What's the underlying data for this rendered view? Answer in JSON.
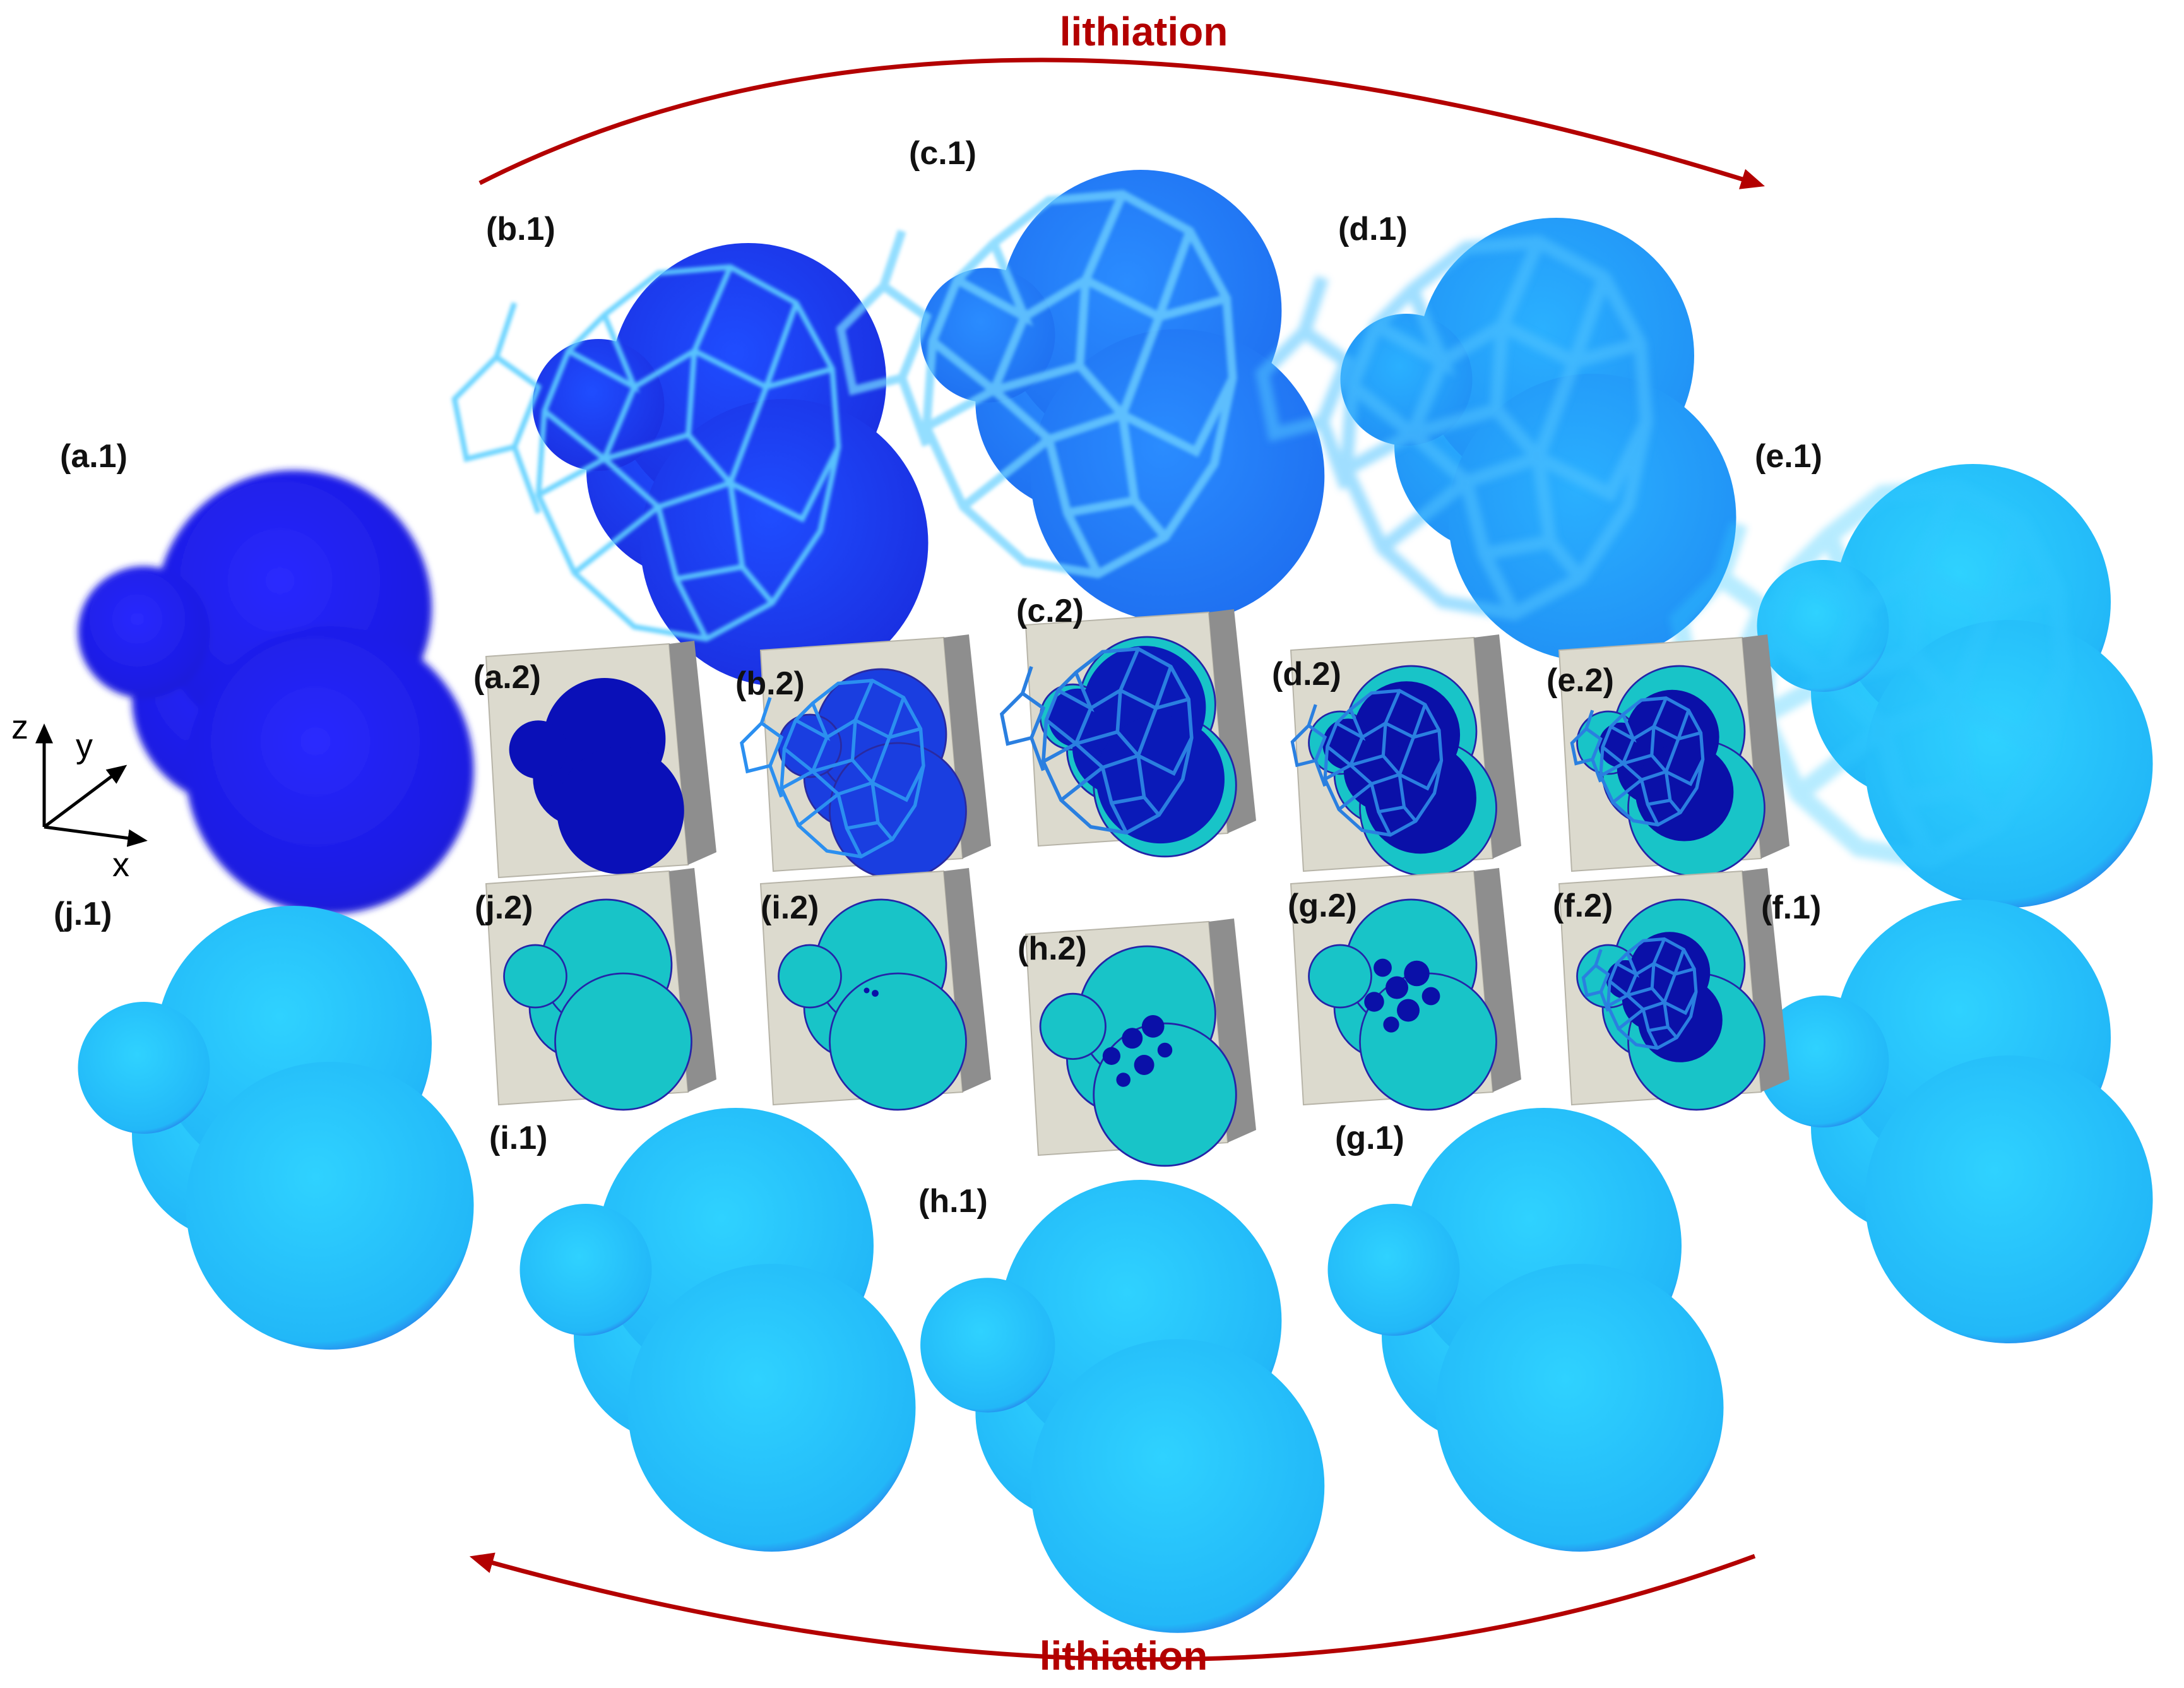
{
  "top_arrow_label": "lithiation",
  "bottom_arrow_label": "lithiation",
  "arrow_color": "#b30000",
  "colors": {
    "deep_blue": "#1a1ae6",
    "medium_blue": "#1e6ff5",
    "bright_blue": "#1ea8f5",
    "light_cyan": "#22c8f8",
    "boundary_glow": "#6fd3ff",
    "slice_plane": "#d9d6cc",
    "slice_edge": "#888888",
    "slice_shell": "#18c4c8",
    "slice_core": "#0a10a8"
  },
  "axes": {
    "z": "z",
    "y": "y",
    "x": "x"
  },
  "particles": [
    {
      "id": "a.1",
      "label": "(a.1)",
      "style": "uniform-deep"
    },
    {
      "id": "b.1",
      "label": "(b.1)",
      "style": "grains-deep"
    },
    {
      "id": "c.1",
      "label": "(c.1)",
      "style": "grains-medium"
    },
    {
      "id": "d.1",
      "label": "(d.1)",
      "style": "grains-faint"
    },
    {
      "id": "e.1",
      "label": "(e.1)",
      "style": "grains-very-faint"
    },
    {
      "id": "f.1",
      "label": "(f.1)",
      "style": "uniform-light"
    },
    {
      "id": "g.1",
      "label": "(g.1)",
      "style": "uniform-light"
    },
    {
      "id": "h.1",
      "label": "(h.1)",
      "style": "uniform-light"
    },
    {
      "id": "i.1",
      "label": "(i.1)",
      "style": "uniform-light"
    },
    {
      "id": "j.1",
      "label": "(j.1)",
      "style": "uniform-light"
    }
  ],
  "slices": [
    {
      "id": "a.2",
      "label": "(a.2)"
    },
    {
      "id": "b.2",
      "label": "(b.2)"
    },
    {
      "id": "c.2",
      "label": "(c.2)"
    },
    {
      "id": "d.2",
      "label": "(d.2)"
    },
    {
      "id": "e.2",
      "label": "(e.2)"
    },
    {
      "id": "f.2",
      "label": "(f.2)"
    },
    {
      "id": "g.2",
      "label": "(g.2)"
    },
    {
      "id": "h.2",
      "label": "(h.2)"
    },
    {
      "id": "i.2",
      "label": "(i.2)"
    },
    {
      "id": "j.2",
      "label": "(j.2)"
    }
  ]
}
